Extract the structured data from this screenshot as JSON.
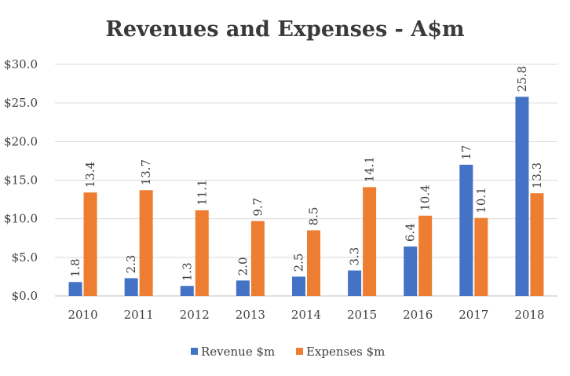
{
  "chart_data": {
    "type": "bar",
    "title": "Revenues and Expenses - A$m",
    "xlabel": "",
    "ylabel": "",
    "categories": [
      "2010",
      "2011",
      "2012",
      "2013",
      "2014",
      "2015",
      "2016",
      "2017",
      "2018"
    ],
    "series": [
      {
        "name": "Revenue $m",
        "color": "#4472C4",
        "values": [
          1.8,
          2.3,
          1.3,
          2.0,
          2.5,
          3.3,
          6.4,
          17,
          25.8
        ],
        "labels": [
          "1.8",
          "2.3",
          "1.3",
          "2.0",
          "2.5",
          "3.3",
          "6.4",
          "17",
          "25.8"
        ]
      },
      {
        "name": "Expenses $m",
        "color": "#ED7D31",
        "values": [
          13.4,
          13.7,
          11.1,
          9.7,
          8.5,
          14.1,
          10.4,
          10.1,
          13.3
        ],
        "labels": [
          "13.4",
          "13.7",
          "11.1",
          "9.7",
          "8.5",
          "14.1",
          "10.4",
          "10.1",
          "13.3"
        ]
      }
    ],
    "ylim": [
      0,
      30
    ],
    "yticks": [
      0,
      5,
      10,
      15,
      20,
      25,
      30
    ],
    "ytick_labels": [
      "$0.0",
      "$5.0",
      "$10.0",
      "$15.0",
      "$20.0",
      "$25.0",
      "$30.0"
    ],
    "grid": true,
    "gridColor": "#d9d9d9",
    "legend_position": "bottom"
  }
}
